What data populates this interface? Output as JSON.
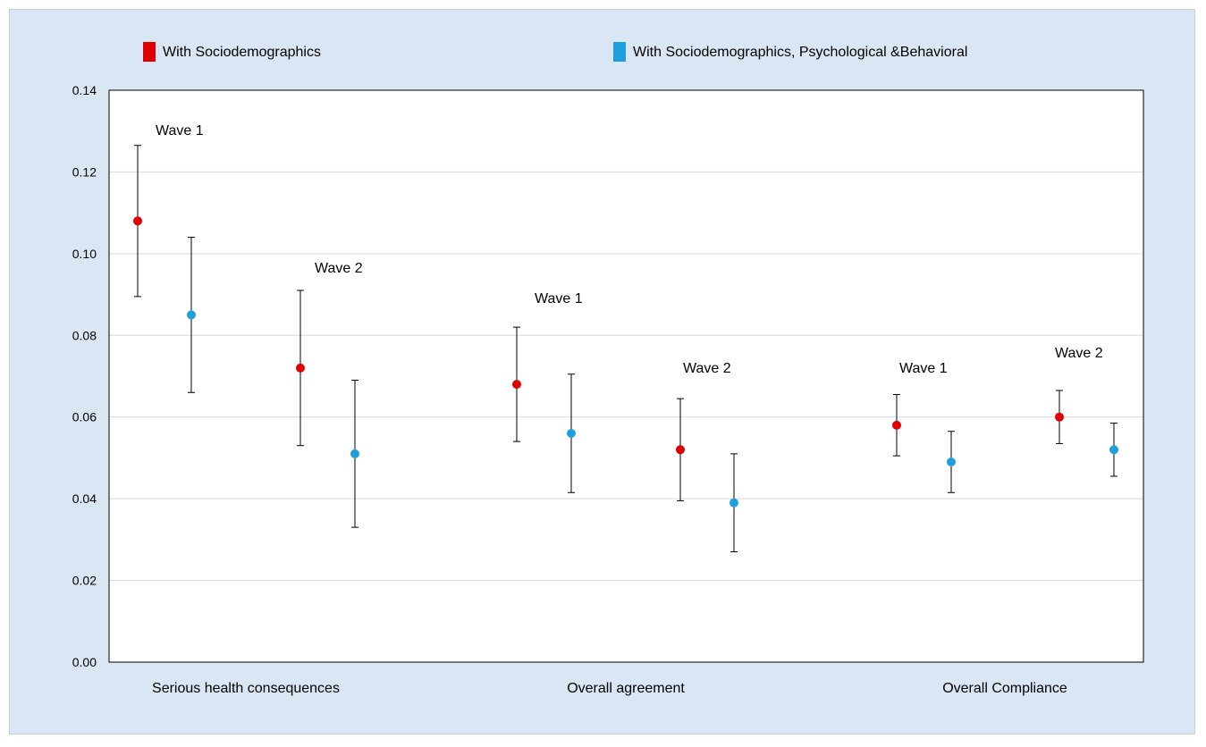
{
  "chart_data": {
    "type": "scatter",
    "title": "",
    "xlabel": "",
    "ylabel": "",
    "ylim": [
      0,
      0.14
    ],
    "yticks": [
      "0.00",
      "0.02",
      "0.04",
      "0.06",
      "0.08",
      "0.10",
      "0.12",
      "0.14"
    ],
    "grid": true,
    "legend_position": "top",
    "categories": [
      "Serious health consequences",
      "Overall agreement",
      "Overall Compliance"
    ],
    "series": [
      {
        "name": "With Sociodemographics",
        "color": "#e00000",
        "points": [
          {
            "category": "Serious health consequences",
            "wave": "Wave 1",
            "value": 0.108,
            "low": 0.0895,
            "high": 0.1265
          },
          {
            "category": "Serious health consequences",
            "wave": "Wave 2",
            "value": 0.072,
            "low": 0.053,
            "high": 0.091
          },
          {
            "category": "Overall agreement",
            "wave": "Wave 1",
            "value": 0.068,
            "low": 0.054,
            "high": 0.082
          },
          {
            "category": "Overall agreement",
            "wave": "Wave 2",
            "value": 0.052,
            "low": 0.0395,
            "high": 0.0645
          },
          {
            "category": "Overall Compliance",
            "wave": "Wave 1",
            "value": 0.058,
            "low": 0.0505,
            "high": 0.0655
          },
          {
            "category": "Overall Compliance",
            "wave": "Wave 2",
            "value": 0.06,
            "low": 0.0535,
            "high": 0.0665
          }
        ]
      },
      {
        "name": "With Sociodemographics, Psychological &Behavioral",
        "color": "#1f9fdc",
        "points": [
          {
            "category": "Serious health consequences",
            "wave": "Wave 1",
            "value": 0.085,
            "low": 0.066,
            "high": 0.104
          },
          {
            "category": "Serious health consequences",
            "wave": "Wave 2",
            "value": 0.051,
            "low": 0.033,
            "high": 0.069
          },
          {
            "category": "Overall agreement",
            "wave": "Wave 1",
            "value": 0.056,
            "low": 0.0415,
            "high": 0.0705
          },
          {
            "category": "Overall agreement",
            "wave": "Wave 2",
            "value": 0.039,
            "low": 0.027,
            "high": 0.051
          },
          {
            "category": "Overall Compliance",
            "wave": "Wave 1",
            "value": 0.049,
            "low": 0.0415,
            "high": 0.0565
          },
          {
            "category": "Overall Compliance",
            "wave": "Wave 2",
            "value": 0.052,
            "low": 0.0455,
            "high": 0.0585
          }
        ]
      }
    ],
    "annotations": [
      {
        "text": "Wave 1"
      },
      {
        "text": "Wave 2"
      },
      {
        "text": "Wave 1"
      },
      {
        "text": "Wave 2"
      },
      {
        "text": "Wave 1"
      },
      {
        "text": "Wave 2"
      }
    ]
  }
}
